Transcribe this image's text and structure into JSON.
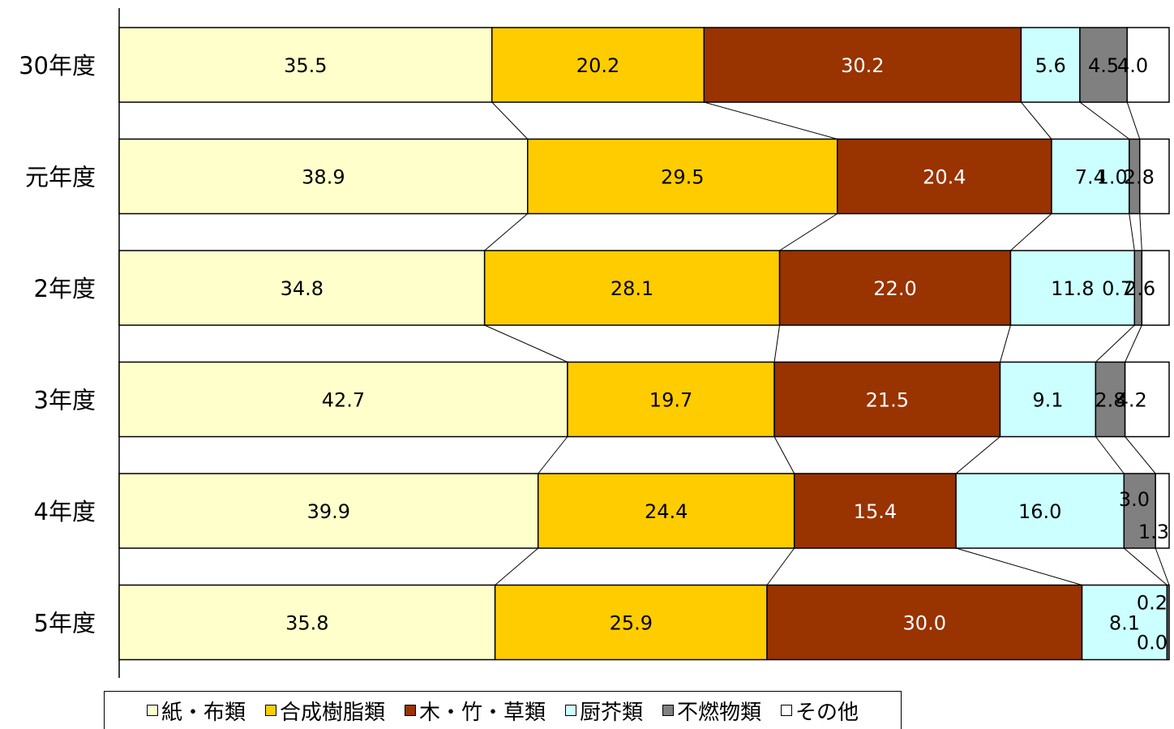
{
  "chart_data": {
    "type": "bar",
    "orientation": "horizontal",
    "stacked": true,
    "percent": true,
    "categories": [
      "30年度",
      "元年度",
      "2年度",
      "3年度",
      "4年度",
      "5年度"
    ],
    "series": [
      {
        "name": "紙・布類",
        "color": "#ffffcc",
        "label_color": "#000000",
        "values": [
          35.5,
          38.9,
          34.8,
          42.7,
          39.9,
          35.8
        ]
      },
      {
        "name": "合成樹脂類",
        "color": "#ffcc00",
        "label_color": "#000000",
        "values": [
          20.2,
          29.5,
          28.1,
          19.7,
          24.4,
          25.9
        ]
      },
      {
        "name": "木・竹・草類",
        "color": "#993300",
        "label_color": "#ffffff",
        "values": [
          30.2,
          20.4,
          22.0,
          21.5,
          15.4,
          30.0
        ]
      },
      {
        "name": "厨芥類",
        "color": "#ccffff",
        "label_color": "#000000",
        "values": [
          5.6,
          7.4,
          11.8,
          9.1,
          16.0,
          8.1
        ]
      },
      {
        "name": "不燃物類",
        "color": "#808080",
        "label_color": "#000000",
        "values": [
          4.5,
          1.0,
          0.7,
          2.8,
          3.0,
          0.2
        ]
      },
      {
        "name": "その他",
        "color": "#ffffff",
        "label_color": "#000000",
        "values": [
          4.0,
          2.8,
          2.6,
          4.2,
          1.3,
          0.0
        ]
      }
    ],
    "xlim": [
      0,
      100
    ],
    "series_lines": true,
    "legend_position": "bottom"
  }
}
